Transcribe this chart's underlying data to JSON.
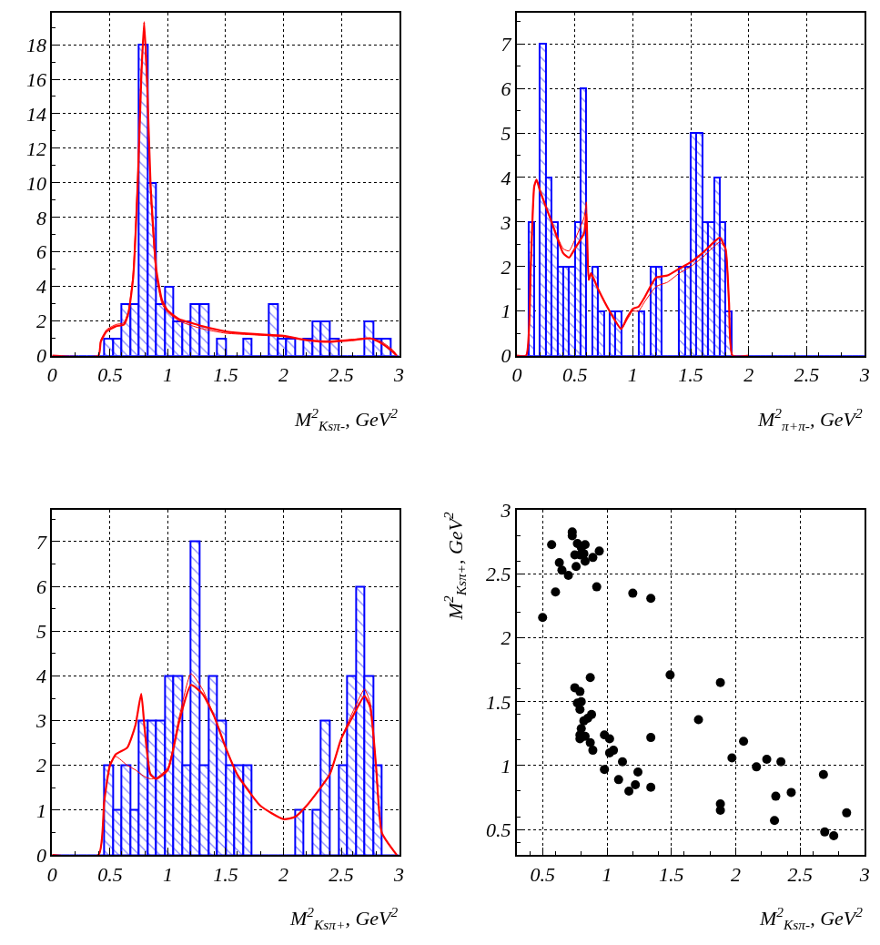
{
  "chart_data": [
    {
      "type": "histogram",
      "xlabel": "M$^{2}$$_{Ksπ-}$, GeV$^{2}$",
      "xlim": [
        0,
        3
      ],
      "xticks": [
        0,
        0.5,
        1,
        1.5,
        2,
        2.5,
        3
      ],
      "ylim": [
        0,
        19.85
      ],
      "yticks": [
        0,
        2,
        4,
        6,
        8,
        10,
        12,
        14,
        16,
        18
      ],
      "grid": true,
      "series": [
        {
          "type": "histogram",
          "color": "#0000ff",
          "bins": [
            0,
            0.075,
            0.15,
            0.225,
            0.3,
            0.375,
            0.45,
            0.525,
            0.6,
            0.675,
            0.75,
            0.825,
            0.9,
            0.975,
            1.05,
            1.125,
            1.2,
            1.275,
            1.35,
            1.425,
            1.5,
            1.575,
            1.65,
            1.725,
            1.8,
            1.875,
            1.95,
            2.025,
            2.1,
            2.175,
            2.25,
            2.325,
            2.4,
            2.475,
            2.55,
            2.625,
            2.7,
            2.775,
            2.85,
            2.925,
            3
          ],
          "values": [
            0,
            0,
            0,
            0,
            0,
            0,
            1,
            1,
            3,
            3,
            18,
            10,
            3,
            4,
            2,
            2,
            3,
            3,
            0,
            1,
            0,
            0,
            1,
            0,
            0,
            3,
            1,
            1,
            0,
            1,
            2,
            2,
            1,
            0,
            0,
            0,
            2,
            1,
            1,
            0
          ]
        },
        {
          "type": "line",
          "color": "#ff0000",
          "x": [
            0,
            0.4,
            0.42,
            0.47,
            0.55,
            0.62,
            0.66,
            0.7,
            0.74,
            0.77,
            0.795,
            0.82,
            0.85,
            0.9,
            0.95,
            1.0,
            1.1,
            1.2,
            1.3,
            1.5,
            1.75,
            2.0,
            2.2,
            2.4,
            2.6,
            2.75,
            2.85,
            2.95,
            2.98
          ],
          "values": [
            0,
            0,
            0.8,
            1.4,
            1.7,
            1.8,
            2.5,
            4.5,
            10,
            16,
            19.3,
            16,
            10,
            5,
            3.2,
            2.6,
            2.1,
            1.9,
            1.7,
            1.4,
            1.25,
            1.15,
            0.9,
            0.8,
            0.9,
            1.0,
            0.7,
            0.2,
            0
          ]
        },
        {
          "type": "line",
          "color": "#ff0000",
          "x": [
            0,
            0.4,
            0.42,
            0.47,
            0.55,
            0.62,
            0.66,
            0.7,
            0.74,
            0.77,
            0.795,
            0.82,
            0.85,
            0.9,
            0.95,
            1.0,
            1.1,
            1.2,
            1.3,
            1.5,
            1.75,
            2.0,
            2.2,
            2.4,
            2.6,
            2.75,
            2.85,
            2.95,
            2.98
          ],
          "values": [
            0,
            0,
            0.9,
            1.5,
            1.8,
            1.9,
            2.6,
            4.8,
            10.5,
            16.5,
            18.8,
            15.5,
            9.5,
            4.6,
            3.0,
            2.5,
            2.0,
            1.75,
            1.55,
            1.3,
            1.2,
            1.1,
            0.9,
            0.85,
            0.95,
            1.0,
            0.8,
            0.3,
            0
          ]
        }
      ]
    },
    {
      "type": "histogram",
      "xlabel": "M$^{2}$$_{π+π-}$, GeV$^{2}$",
      "xlim": [
        0,
        3
      ],
      "xticks": [
        0,
        0.5,
        1,
        1.5,
        2,
        2.5,
        3
      ],
      "ylim": [
        0,
        7.7
      ],
      "yticks": [
        0,
        1,
        2,
        3,
        4,
        5,
        6,
        7
      ],
      "grid": true,
      "series": [
        {
          "type": "histogram",
          "color": "#0000ff",
          "bins": [
            0,
            0.05,
            0.1,
            0.15,
            0.2,
            0.25,
            0.3,
            0.35,
            0.4,
            0.45,
            0.5,
            0.55,
            0.6,
            0.65,
            0.7,
            0.75,
            0.8,
            0.85,
            0.9,
            0.95,
            1,
            1.05,
            1.1,
            1.15,
            1.2,
            1.25,
            1.3,
            1.35,
            1.4,
            1.45,
            1.5,
            1.55,
            1.6,
            1.65,
            1.7,
            1.75,
            1.8,
            1.85,
            1.9,
            1.95,
            2,
            2.05,
            2.1,
            2.15,
            2.2,
            2.25,
            2.3,
            2.35,
            2.4,
            2.45,
            2.5,
            2.55,
            2.6,
            2.65,
            2.7,
            2.75,
            2.8,
            2.85,
            2.9,
            2.95,
            3
          ],
          "values": [
            0,
            0,
            3,
            0,
            7,
            4,
            3,
            2,
            2,
            2,
            3,
            6,
            0,
            2,
            1,
            0,
            1,
            1,
            0,
            0,
            0,
            1,
            0,
            2,
            2,
            0,
            0,
            0,
            2,
            2,
            5,
            5,
            3,
            3,
            4,
            3,
            1,
            0,
            0,
            0,
            0,
            0,
            0,
            0,
            0,
            0,
            0,
            0,
            0,
            0,
            0,
            0,
            0,
            0,
            0,
            0,
            0,
            0,
            0,
            0
          ]
        },
        {
          "type": "line",
          "color": "#ff0000",
          "x": [
            0,
            0.08,
            0.12,
            0.15,
            0.17,
            0.2,
            0.3,
            0.4,
            0.45,
            0.5,
            0.58,
            0.6,
            0.62,
            0.64,
            0.7,
            0.8,
            0.9,
            0.95,
            1.0,
            1.05,
            1.1,
            1.2,
            1.3,
            1.4,
            1.5,
            1.6,
            1.7,
            1.75,
            1.8,
            1.83,
            1.86,
            2
          ],
          "values": [
            0,
            0,
            2,
            3.8,
            3.95,
            3.7,
            3.0,
            2.3,
            2.2,
            2.4,
            2.75,
            3.2,
            1.7,
            1.85,
            1.5,
            1.0,
            0.6,
            0.85,
            1.05,
            1.1,
            1.3,
            1.75,
            1.8,
            1.95,
            2.1,
            2.3,
            2.55,
            2.65,
            2.4,
            1.2,
            0,
            0
          ]
        },
        {
          "type": "line",
          "color": "#ff0000",
          "x": [
            0,
            0.08,
            0.12,
            0.15,
            0.17,
            0.2,
            0.3,
            0.4,
            0.45,
            0.5,
            0.58,
            0.6,
            0.62,
            0.64,
            0.7,
            0.8,
            0.9,
            0.95,
            1.0,
            1.05,
            1.1,
            1.2,
            1.3,
            1.4,
            1.5,
            1.6,
            1.7,
            1.75,
            1.8,
            1.83,
            1.86,
            2
          ],
          "values": [
            0,
            0,
            2,
            3.8,
            3.95,
            3.7,
            3.0,
            2.4,
            2.35,
            2.6,
            3.1,
            3.45,
            1.7,
            1.8,
            1.5,
            1.0,
            0.6,
            0.8,
            1.0,
            1.0,
            1.2,
            1.55,
            1.65,
            1.85,
            2.0,
            2.2,
            2.45,
            2.55,
            2.4,
            1.2,
            0,
            0
          ]
        }
      ]
    },
    {
      "type": "histogram",
      "xlabel": "M$^{2}$$_{Ksπ+}$, GeV$^{2}$",
      "xlim": [
        0,
        3
      ],
      "xticks": [
        0,
        0.5,
        1,
        1.5,
        2,
        2.5,
        3
      ],
      "ylim": [
        0,
        7.7
      ],
      "yticks": [
        0,
        1,
        2,
        3,
        4,
        5,
        6,
        7
      ],
      "grid": true,
      "series": [
        {
          "type": "histogram",
          "color": "#0000ff",
          "bins": [
            0,
            0.075,
            0.15,
            0.225,
            0.3,
            0.375,
            0.45,
            0.525,
            0.6,
            0.675,
            0.75,
            0.825,
            0.9,
            0.975,
            1.05,
            1.125,
            1.2,
            1.275,
            1.35,
            1.425,
            1.5,
            1.575,
            1.65,
            1.725,
            1.8,
            1.875,
            1.95,
            2.025,
            2.1,
            2.175,
            2.25,
            2.325,
            2.4,
            2.475,
            2.55,
            2.625,
            2.7,
            2.775,
            2.85,
            2.925,
            3
          ],
          "values": [
            0,
            0,
            0,
            0,
            0,
            0,
            2,
            1,
            2,
            1,
            3,
            3,
            3,
            4,
            4,
            2,
            7,
            2,
            4,
            3,
            2,
            2,
            2,
            0,
            0,
            0,
            0,
            0,
            1,
            0,
            1,
            3,
            0,
            2,
            4,
            6,
            4,
            2,
            0,
            0
          ]
        },
        {
          "type": "line",
          "color": "#ff0000",
          "x": [
            0,
            0.4,
            0.45,
            0.5,
            0.55,
            0.65,
            0.72,
            0.77,
            0.8,
            0.85,
            0.9,
            1.0,
            1.1,
            1.2,
            1.3,
            1.4,
            1.5,
            1.6,
            1.8,
            2.0,
            2.1,
            2.2,
            2.4,
            2.5,
            2.6,
            2.7,
            2.75,
            2.8,
            2.85,
            2.95,
            2.98
          ],
          "values": [
            0,
            0,
            1.2,
            2.0,
            2.25,
            2.4,
            2.9,
            3.6,
            2.8,
            1.8,
            1.7,
            1.9,
            3.0,
            3.8,
            3.6,
            3.1,
            2.4,
            1.8,
            1.1,
            0.8,
            0.85,
            1.1,
            1.8,
            2.6,
            3.1,
            3.55,
            3.3,
            2.0,
            0.5,
            0.1,
            0
          ]
        },
        {
          "type": "line",
          "color": "#ff0000",
          "x": [
            0,
            0.4,
            0.45,
            0.5,
            0.55,
            0.65,
            0.72,
            0.77,
            0.8,
            0.85,
            0.9,
            1.0,
            1.1,
            1.2,
            1.3,
            1.4,
            1.5,
            1.6,
            1.8,
            2.0,
            2.1,
            2.2,
            2.4,
            2.5,
            2.6,
            2.7,
            2.75,
            2.8,
            2.85,
            2.95,
            2.98
          ],
          "values": [
            0,
            0,
            1.2,
            2.05,
            2.2,
            2.0,
            1.9,
            1.8,
            1.75,
            1.7,
            1.72,
            1.95,
            3.1,
            4.05,
            3.7,
            3.1,
            2.4,
            1.8,
            1.1,
            0.8,
            0.85,
            1.1,
            1.8,
            2.6,
            3.2,
            3.7,
            3.4,
            2.0,
            0.5,
            0.1,
            0
          ]
        }
      ]
    },
    {
      "type": "scatter",
      "xlabel": "M$^{2}$$_{Ksπ-}$, GeV$^{2}$",
      "ylabel": "M$^{2}$$_{Ksπ+}$, GeV$^{2}$",
      "xlim": [
        0.3,
        3
      ],
      "xticks": [
        0.5,
        1,
        1.5,
        2,
        2.5,
        3
      ],
      "ylim": [
        0.3,
        3
      ],
      "yticks": [
        0.5,
        1,
        1.5,
        2,
        2.5,
        3
      ],
      "grid": true,
      "marker": "circle",
      "color": "#000000",
      "x": [
        0.5,
        0.57,
        0.6,
        0.63,
        0.65,
        0.7,
        0.73,
        0.73,
        0.75,
        0.76,
        0.77,
        0.79,
        0.8,
        0.83,
        0.82,
        0.83,
        0.89,
        0.94,
        0.92,
        1.2,
        1.34,
        1.49,
        1.88,
        0.87,
        0.75,
        0.79,
        0.77,
        0.8,
        0.79,
        0.88,
        0.82,
        0.85,
        0.8,
        0.79,
        0.79,
        0.83,
        0.87,
        0.89,
        0.98,
        1.02,
        1.02,
        1.05,
        1.12,
        0.98,
        1.09,
        1.17,
        1.22,
        1.24,
        1.34,
        1.34,
        1.71,
        1.97,
        2.06,
        2.16,
        2.24,
        2.35,
        2.31,
        2.43,
        2.3,
        1.88,
        1.88,
        2.68,
        2.69,
        2.76,
        2.86
      ],
      "values": [
        2.16,
        2.73,
        2.36,
        2.59,
        2.53,
        2.49,
        2.83,
        2.8,
        2.65,
        2.56,
        2.74,
        2.65,
        2.71,
        2.73,
        2.66,
        2.6,
        2.63,
        2.68,
        2.4,
        2.35,
        2.31,
        1.71,
        1.65,
        1.69,
        1.61,
        1.58,
        1.49,
        1.5,
        1.44,
        1.4,
        1.35,
        1.37,
        1.29,
        1.24,
        1.21,
        1.23,
        1.18,
        1.12,
        1.24,
        1.21,
        1.1,
        1.12,
        1.03,
        0.97,
        0.89,
        0.8,
        0.85,
        0.95,
        1.22,
        0.83,
        1.36,
        1.06,
        1.19,
        0.99,
        1.05,
        1.03,
        0.76,
        0.79,
        0.57,
        0.7,
        0.65,
        0.93,
        0.48,
        0.45,
        0.63
      ]
    }
  ]
}
